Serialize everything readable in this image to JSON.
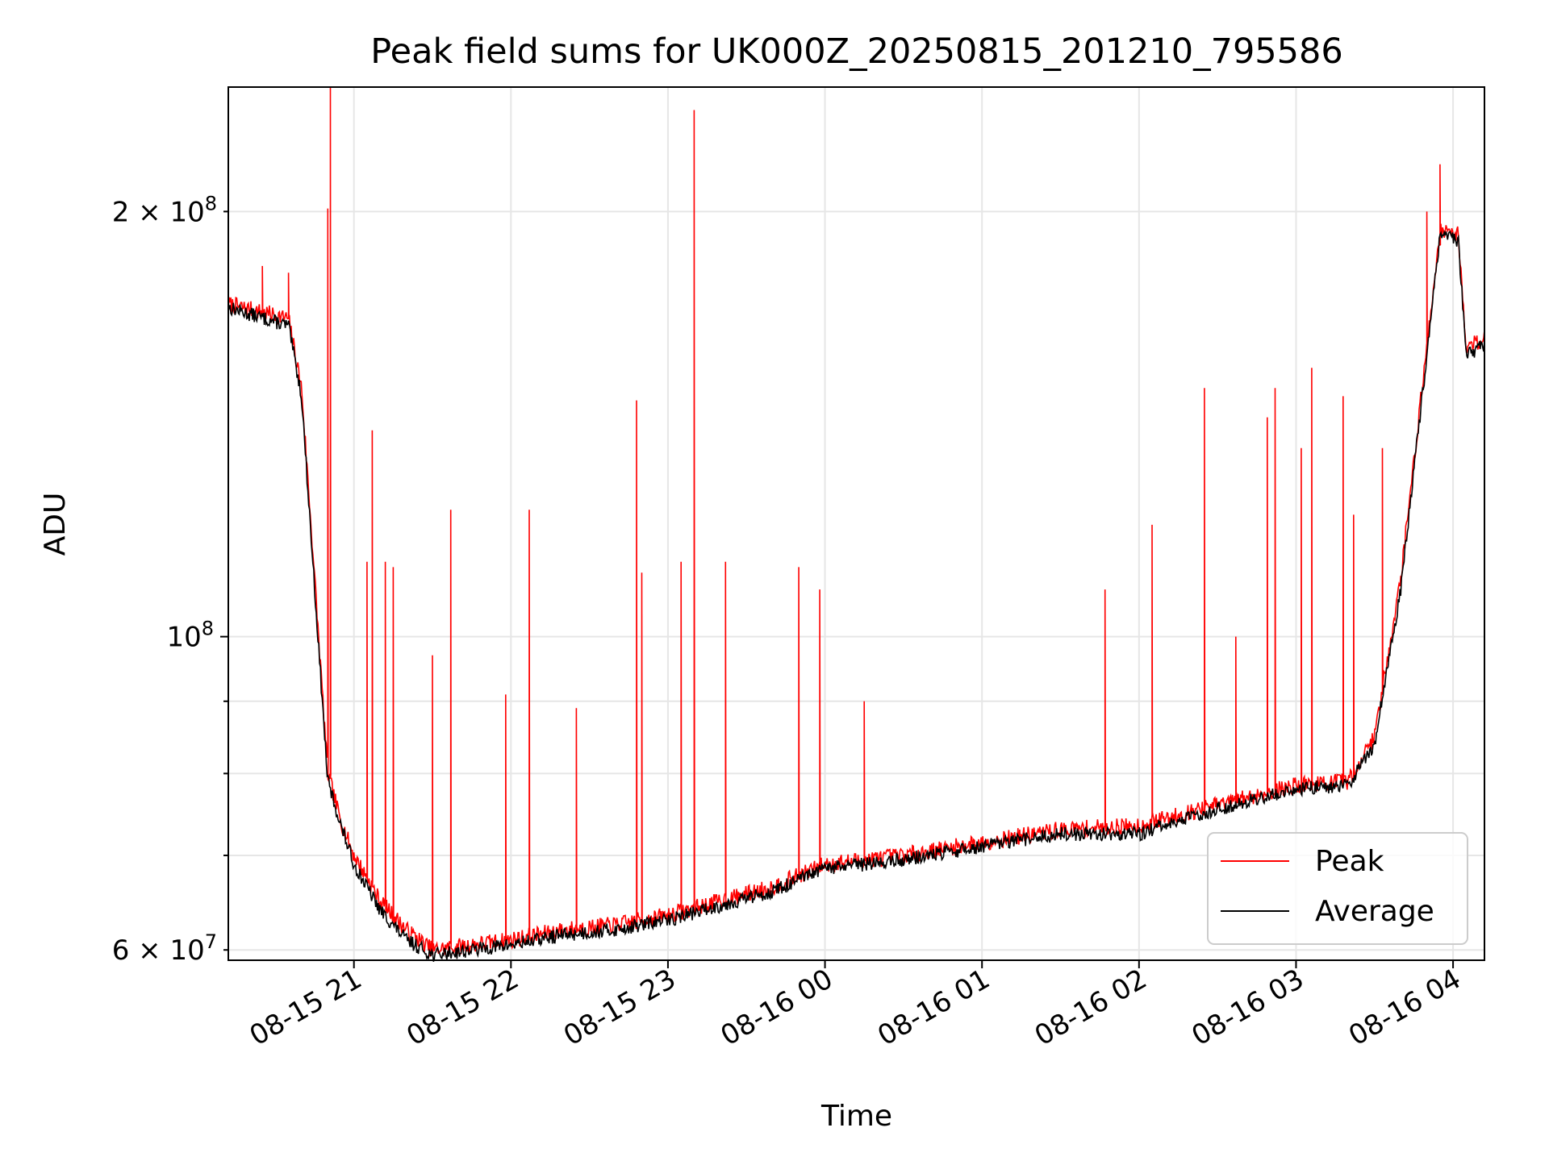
{
  "chart_data": {
    "type": "line",
    "title": "Peak field sums for UK000Z_20250815_201210_795586",
    "xlabel": "Time",
    "ylabel": "ADU",
    "x_axis": {
      "type": "time",
      "range": [
        "2025-08-15 20:12",
        "2025-08-16 04:12"
      ],
      "ticks": [
        "2025-08-15 21:00",
        "2025-08-15 22:00",
        "2025-08-15 23:00",
        "2025-08-16 00:00",
        "2025-08-16 01:00",
        "2025-08-16 02:00",
        "2025-08-16 03:00",
        "2025-08-16 04:00"
      ],
      "tick_labels": [
        "08-15 21",
        "08-15 22",
        "08-15 23",
        "08-16 00",
        "08-16 01",
        "08-16 02",
        "08-16 03",
        "08-16 04"
      ]
    },
    "y_axis": {
      "scale": "log",
      "range": [
        59000000,
        245000000
      ],
      "major_ticks": [
        100000000
      ],
      "major_tick_labels": [
        "10^8"
      ],
      "minor_ticks": [
        60000000,
        70000000,
        80000000,
        90000000,
        200000000
      ],
      "minor_tick_labels": [
        "6×10^7",
        "",
        "",
        "",
        "2×10^8"
      ]
    },
    "grid": true,
    "legend_position": "lower-right",
    "series": [
      {
        "name": "Peak",
        "color": "#ff0000",
        "x": [
          "2025-08-15 20:12",
          "2025-08-15 20:35",
          "2025-08-15 20:40",
          "2025-08-15 20:45",
          "2025-08-15 20:50",
          "2025-08-15 20:55",
          "2025-08-15 21:00",
          "2025-08-15 21:10",
          "2025-08-15 21:20",
          "2025-08-15 21:30",
          "2025-08-15 21:45",
          "2025-08-15 22:00",
          "2025-08-15 22:20",
          "2025-08-15 22:40",
          "2025-08-15 23:00",
          "2025-08-15 23:20",
          "2025-08-15 23:40",
          "2025-08-16 00:00",
          "2025-08-16 00:30",
          "2025-08-16 01:00",
          "2025-08-16 01:30",
          "2025-08-16 02:00",
          "2025-08-16 02:30",
          "2025-08-16 03:00",
          "2025-08-16 03:20",
          "2025-08-16 03:30",
          "2025-08-16 03:40",
          "2025-08-16 03:55",
          "2025-08-16 04:02",
          "2025-08-16 04:05",
          "2025-08-16 04:12"
        ],
        "y": [
          172000000,
          168000000,
          150000000,
          110000000,
          80000000,
          74000000,
          70000000,
          65000000,
          62000000,
          60000000,
          60500000,
          61000000,
          62000000,
          62500000,
          63500000,
          65000000,
          66500000,
          69000000,
          70000000,
          71500000,
          73000000,
          73500000,
          76000000,
          78500000,
          79000000,
          85000000,
          110000000,
          194000000,
          193000000,
          160000000,
          163000000
        ],
        "spikes": [
          {
            "x": "2025-08-15 20:25",
            "y": 183000000
          },
          {
            "x": "2025-08-15 20:35",
            "y": 181000000
          },
          {
            "x": "2025-08-15 20:50",
            "y": 201000000
          },
          {
            "x": "2025-08-15 20:51",
            "y": 245000000
          },
          {
            "x": "2025-08-15 21:07",
            "y": 140000000
          },
          {
            "x": "2025-08-15 21:05",
            "y": 113000000
          },
          {
            "x": "2025-08-15 21:12",
            "y": 113000000
          },
          {
            "x": "2025-08-15 21:15",
            "y": 112000000
          },
          {
            "x": "2025-08-15 21:30",
            "y": 97000000
          },
          {
            "x": "2025-08-15 21:37",
            "y": 123000000
          },
          {
            "x": "2025-08-15 21:58",
            "y": 91000000
          },
          {
            "x": "2025-08-15 22:07",
            "y": 123000000
          },
          {
            "x": "2025-08-15 22:25",
            "y": 89000000
          },
          {
            "x": "2025-08-15 22:48",
            "y": 147000000
          },
          {
            "x": "2025-08-15 22:50",
            "y": 111000000
          },
          {
            "x": "2025-08-15 23:05",
            "y": 113000000
          },
          {
            "x": "2025-08-15 23:10",
            "y": 236000000
          },
          {
            "x": "2025-08-15 23:22",
            "y": 113000000
          },
          {
            "x": "2025-08-15 23:50",
            "y": 112000000
          },
          {
            "x": "2025-08-15 23:58",
            "y": 108000000
          },
          {
            "x": "2025-08-16 00:15",
            "y": 90000000
          },
          {
            "x": "2025-08-16 01:47",
            "y": 108000000
          },
          {
            "x": "2025-08-16 02:05",
            "y": 120000000
          },
          {
            "x": "2025-08-16 02:25",
            "y": 150000000
          },
          {
            "x": "2025-08-16 02:37",
            "y": 100000000
          },
          {
            "x": "2025-08-16 02:49",
            "y": 143000000
          },
          {
            "x": "2025-08-16 02:52",
            "y": 150000000
          },
          {
            "x": "2025-08-16 03:02",
            "y": 136000000
          },
          {
            "x": "2025-08-16 03:06",
            "y": 155000000
          },
          {
            "x": "2025-08-16 03:18",
            "y": 148000000
          },
          {
            "x": "2025-08-16 03:22",
            "y": 122000000
          },
          {
            "x": "2025-08-16 03:33",
            "y": 136000000
          },
          {
            "x": "2025-08-16 03:50",
            "y": 200000000
          },
          {
            "x": "2025-08-16 03:55",
            "y": 216000000
          }
        ]
      },
      {
        "name": "Average",
        "color": "#000000",
        "x": [
          "2025-08-15 20:12",
          "2025-08-15 20:35",
          "2025-08-15 20:40",
          "2025-08-15 20:45",
          "2025-08-15 20:50",
          "2025-08-15 20:55",
          "2025-08-15 21:00",
          "2025-08-15 21:10",
          "2025-08-15 21:20",
          "2025-08-15 21:30",
          "2025-08-15 21:45",
          "2025-08-15 22:00",
          "2025-08-15 22:20",
          "2025-08-15 22:40",
          "2025-08-15 23:00",
          "2025-08-15 23:20",
          "2025-08-15 23:40",
          "2025-08-16 00:00",
          "2025-08-16 00:30",
          "2025-08-16 01:00",
          "2025-08-16 01:30",
          "2025-08-16 02:00",
          "2025-08-16 02:30",
          "2025-08-16 03:00",
          "2025-08-16 03:20",
          "2025-08-16 03:30",
          "2025-08-16 03:40",
          "2025-08-16 03:55",
          "2025-08-16 04:02",
          "2025-08-16 04:05",
          "2025-08-16 04:12"
        ],
        "y": [
          171000000,
          166000000,
          148000000,
          108000000,
          79000000,
          73500000,
          69000000,
          64000000,
          61000000,
          59500000,
          60000000,
          60500000,
          61500000,
          62000000,
          63000000,
          64500000,
          66000000,
          68500000,
          69500000,
          71000000,
          72500000,
          72500000,
          75500000,
          78000000,
          78500000,
          84000000,
          108000000,
          192000000,
          191000000,
          158000000,
          161000000
        ]
      }
    ]
  }
}
